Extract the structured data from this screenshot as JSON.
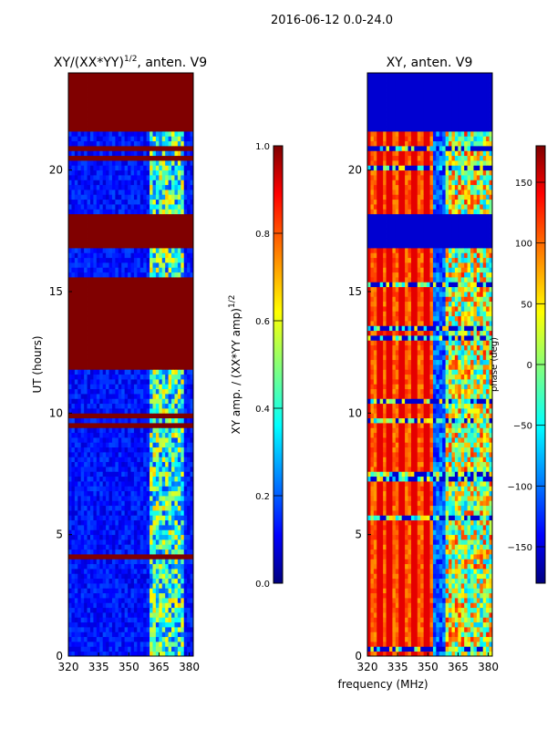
{
  "figure": {
    "suptitle": "2016-06-12 0.0-24.0",
    "xlabel": "frequency (MHz)"
  },
  "chart_data": [
    {
      "type": "heatmap",
      "title_prefix": "XY/(XX*YY)",
      "title_exponent": "1/2",
      "title_suffix": ", anten. V9",
      "xlabel": "",
      "ylabel": "UT (hours)",
      "xlim": [
        320,
        382
      ],
      "ylim": [
        0,
        24
      ],
      "xticks": [
        320,
        335,
        350,
        365,
        380
      ],
      "yticks": [
        0,
        5,
        10,
        15,
        20
      ],
      "colormap": "jet",
      "colorbar": {
        "label_prefix": "XY amp. / (XX*YY amp)",
        "label_exponent": "1/2",
        "range": [
          0.0,
          1.0
        ],
        "ticks": [
          "0.0",
          "0.2",
          "0.4",
          "0.6",
          "0.8",
          "1.0"
        ]
      },
      "flagged_blocks_hours": [
        [
          21.7,
          24.0
        ],
        [
          16.8,
          18.2
        ],
        [
          12.0,
          15.7
        ]
      ],
      "high_band_mhz": [
        361,
        377
      ]
    },
    {
      "type": "heatmap",
      "title": "XY, anten. V9",
      "xlabel": "",
      "ylabel": "",
      "xlim": [
        320,
        382
      ],
      "ylim": [
        0,
        24
      ],
      "xticks": [
        320,
        335,
        350,
        365,
        380
      ],
      "yticks": [
        0,
        5,
        10,
        15,
        20
      ],
      "colormap": "jet",
      "colorbar": {
        "label": "phase (deg)",
        "range": [
          -180,
          180
        ],
        "ticks": [
          "150",
          "100",
          "50",
          "0",
          "−50",
          "−100",
          "−150"
        ]
      },
      "flagged_blocks_hours": [
        [
          21.7,
          24.0
        ],
        [
          16.8,
          18.2
        ]
      ],
      "high_band_mhz": [
        358,
        380
      ]
    }
  ]
}
